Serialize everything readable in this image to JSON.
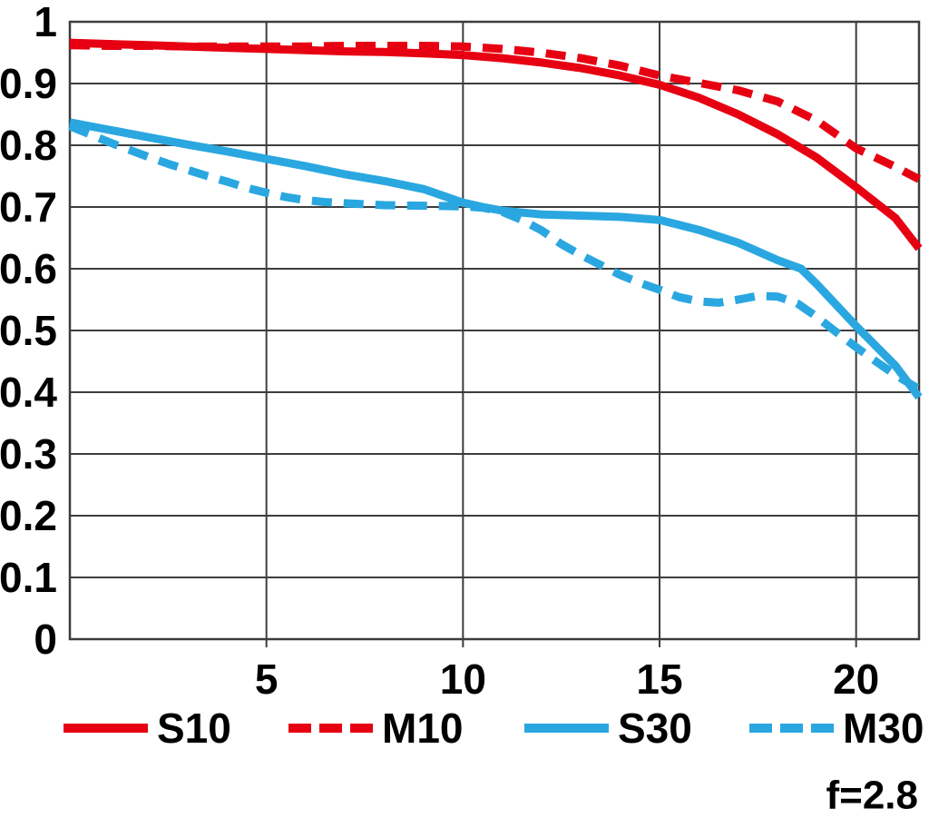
{
  "chart_data": {
    "type": "line",
    "title": "",
    "xlabel": "",
    "ylabel": "",
    "xlim": [
      0,
      21.6
    ],
    "ylim": [
      0,
      1
    ],
    "x_ticks": [
      "5",
      "10",
      "15",
      "20"
    ],
    "y_ticks": [
      "1",
      "0.9",
      "0.8",
      "0.7",
      "0.6",
      "0.5",
      "0.4",
      "0.3",
      "0.2",
      "0.1",
      "0"
    ],
    "grid": true,
    "legend_position": "bottom",
    "annotation": "f=2.8",
    "colors": {
      "red": "#e60012",
      "blue": "#2aa7e0",
      "grid": "#3d3d3d",
      "text": "#000000"
    },
    "series": [
      {
        "name": "S10",
        "color": "#e60012",
        "style": "solid",
        "points": [
          [
            0,
            0.966
          ],
          [
            1,
            0.964
          ],
          [
            2,
            0.962
          ],
          [
            3,
            0.96
          ],
          [
            4,
            0.958
          ],
          [
            5,
            0.956
          ],
          [
            6,
            0.954
          ],
          [
            7,
            0.952
          ],
          [
            8,
            0.951
          ],
          [
            9,
            0.949
          ],
          [
            10,
            0.946
          ],
          [
            11,
            0.941
          ],
          [
            12,
            0.934
          ],
          [
            13,
            0.925
          ],
          [
            14,
            0.913
          ],
          [
            15,
            0.898
          ],
          [
            16,
            0.877
          ],
          [
            17,
            0.85
          ],
          [
            18,
            0.818
          ],
          [
            19,
            0.78
          ],
          [
            20,
            0.732
          ],
          [
            21,
            0.682
          ],
          [
            21.6,
            0.633
          ]
        ]
      },
      {
        "name": "M10",
        "color": "#e60012",
        "style": "dashed",
        "points": [
          [
            0,
            0.962
          ],
          [
            1,
            0.961
          ],
          [
            2,
            0.961
          ],
          [
            3,
            0.96
          ],
          [
            4,
            0.96
          ],
          [
            5,
            0.96
          ],
          [
            6,
            0.96
          ],
          [
            7,
            0.961
          ],
          [
            8,
            0.961
          ],
          [
            9,
            0.961
          ],
          [
            10,
            0.96
          ],
          [
            11,
            0.956
          ],
          [
            12,
            0.95
          ],
          [
            13,
            0.941
          ],
          [
            14,
            0.929
          ],
          [
            15,
            0.913
          ],
          [
            16,
            0.901
          ],
          [
            17,
            0.889
          ],
          [
            18,
            0.871
          ],
          [
            19,
            0.84
          ],
          [
            20,
            0.795
          ],
          [
            21,
            0.765
          ],
          [
            21.6,
            0.745
          ]
        ]
      },
      {
        "name": "S30",
        "color": "#2aa7e0",
        "style": "solid",
        "points": [
          [
            0,
            0.837
          ],
          [
            1,
            0.825
          ],
          [
            2,
            0.813
          ],
          [
            3,
            0.801
          ],
          [
            4,
            0.79
          ],
          [
            5,
            0.778
          ],
          [
            6,
            0.766
          ],
          [
            7,
            0.753
          ],
          [
            8,
            0.742
          ],
          [
            9,
            0.729
          ],
          [
            10,
            0.707
          ],
          [
            10.5,
            0.7
          ],
          [
            11,
            0.694
          ],
          [
            12,
            0.688
          ],
          [
            13,
            0.686
          ],
          [
            14,
            0.684
          ],
          [
            15,
            0.679
          ],
          [
            16,
            0.663
          ],
          [
            17,
            0.642
          ],
          [
            18,
            0.614
          ],
          [
            18.6,
            0.6
          ],
          [
            19,
            0.575
          ],
          [
            20,
            0.507
          ],
          [
            21,
            0.443
          ],
          [
            21.6,
            0.392
          ]
        ]
      },
      {
        "name": "M30",
        "color": "#2aa7e0",
        "style": "dashed",
        "points": [
          [
            0,
            0.831
          ],
          [
            0.5,
            0.818
          ],
          [
            1,
            0.805
          ],
          [
            1.5,
            0.793
          ],
          [
            2,
            0.781
          ],
          [
            2.5,
            0.77
          ],
          [
            3,
            0.76
          ],
          [
            3.5,
            0.75
          ],
          [
            4,
            0.741
          ],
          [
            4.5,
            0.731
          ],
          [
            5,
            0.723
          ],
          [
            5.5,
            0.716
          ],
          [
            6,
            0.711
          ],
          [
            6.5,
            0.708
          ],
          [
            7,
            0.706
          ],
          [
            8,
            0.703
          ],
          [
            9,
            0.702
          ],
          [
            10,
            0.701
          ],
          [
            10.5,
            0.699
          ],
          [
            11,
            0.692
          ],
          [
            11.5,
            0.679
          ],
          [
            12,
            0.662
          ],
          [
            12.5,
            0.64
          ],
          [
            13,
            0.622
          ],
          [
            13.5,
            0.606
          ],
          [
            14,
            0.59
          ],
          [
            14.5,
            0.577
          ],
          [
            15,
            0.566
          ],
          [
            15.5,
            0.554
          ],
          [
            16,
            0.547
          ],
          [
            16.5,
            0.545
          ],
          [
            17,
            0.55
          ],
          [
            17.5,
            0.556
          ],
          [
            18,
            0.555
          ],
          [
            18.5,
            0.544
          ],
          [
            19,
            0.522
          ],
          [
            19.5,
            0.497
          ],
          [
            20,
            0.473
          ],
          [
            20.5,
            0.45
          ],
          [
            21,
            0.428
          ],
          [
            21.6,
            0.405
          ]
        ]
      }
    ],
    "legend": {
      "items": [
        "S10",
        "M10",
        "S30",
        "M30"
      ]
    }
  }
}
